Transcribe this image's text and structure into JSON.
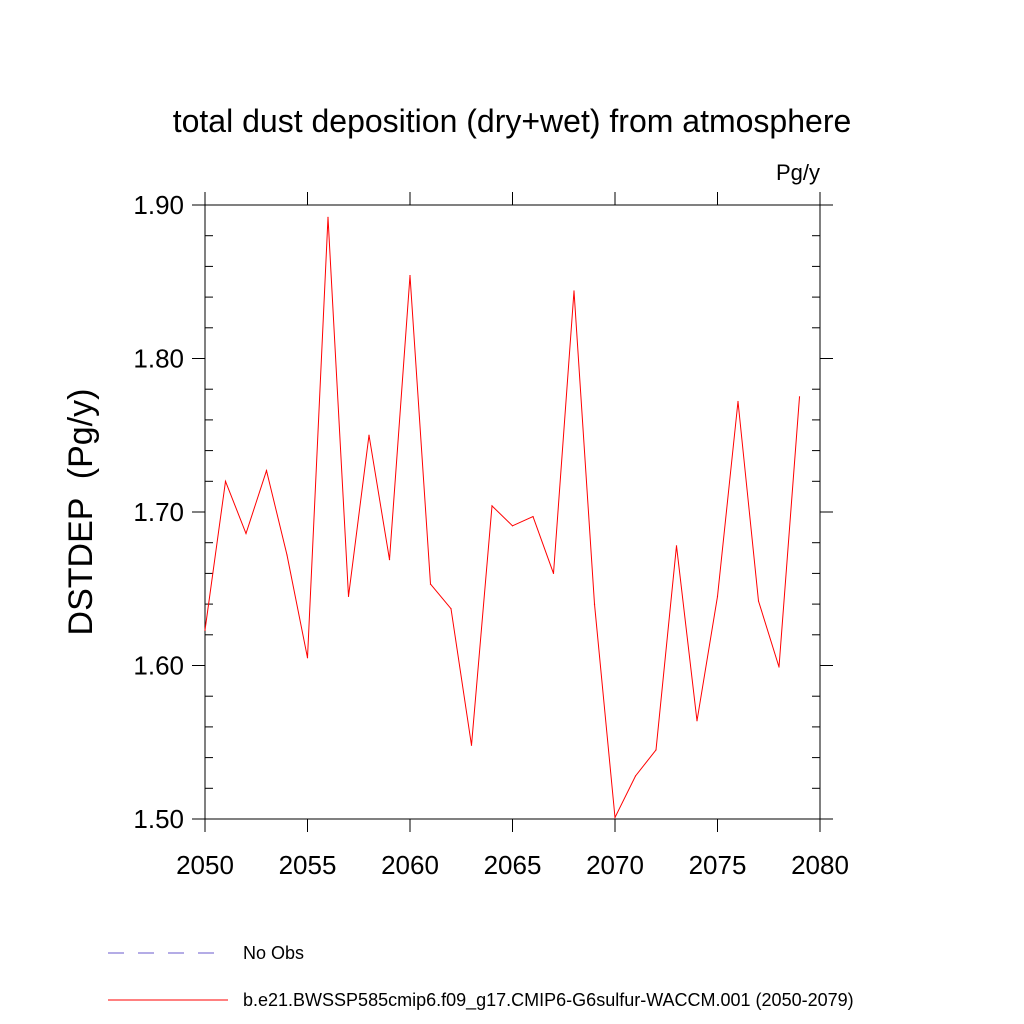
{
  "chart_data": {
    "type": "line",
    "title": "total dust deposition (dry+wet) from atmosphere",
    "units": "Pg/y",
    "ylabel": "DSTDEP  (Pg/y)",
    "xlabel": "",
    "xlim": [
      2050,
      2080
    ],
    "ylim": [
      1.5,
      1.9
    ],
    "x_ticks": [
      "2050",
      "2055",
      "2060",
      "2065",
      "2070",
      "2075",
      "2080"
    ],
    "y_ticks": [
      "1.50",
      "1.60",
      "1.70",
      "1.80",
      "1.90"
    ],
    "grid": false,
    "legend_position": "bottom",
    "x": [
      2050,
      2051,
      2052,
      2053,
      2054,
      2055,
      2056,
      2057,
      2058,
      2059,
      2060,
      2061,
      2062,
      2063,
      2064,
      2065,
      2066,
      2067,
      2068,
      2069,
      2070,
      2071,
      2072,
      2073,
      2074,
      2075,
      2076,
      2077,
      2078,
      2079
    ],
    "series": [
      {
        "name": "b.e21.BWSSP585cmip6.f09_g17.CMIP6-G6sulfur-WACCM.001 (2050-2079)",
        "color": "#ff0000",
        "values": [
          1.623,
          1.72,
          1.686,
          1.727,
          1.672,
          1.605,
          1.892,
          1.645,
          1.75,
          1.669,
          1.854,
          1.653,
          1.637,
          1.548,
          1.704,
          1.691,
          1.697,
          1.66,
          1.844,
          1.64,
          1.501,
          1.528,
          1.545,
          1.678,
          1.564,
          1.645,
          1.772,
          1.642,
          1.599,
          1.775
        ]
      }
    ],
    "legend": [
      {
        "label": "No Obs",
        "color": "#6a5acd",
        "style": "dashed"
      },
      {
        "label": "b.e21.BWSSP585cmip6.f09_g17.CMIP6-G6sulfur-WACCM.001 (2050-2079)",
        "color": "#ff0000",
        "style": "solid"
      }
    ]
  }
}
